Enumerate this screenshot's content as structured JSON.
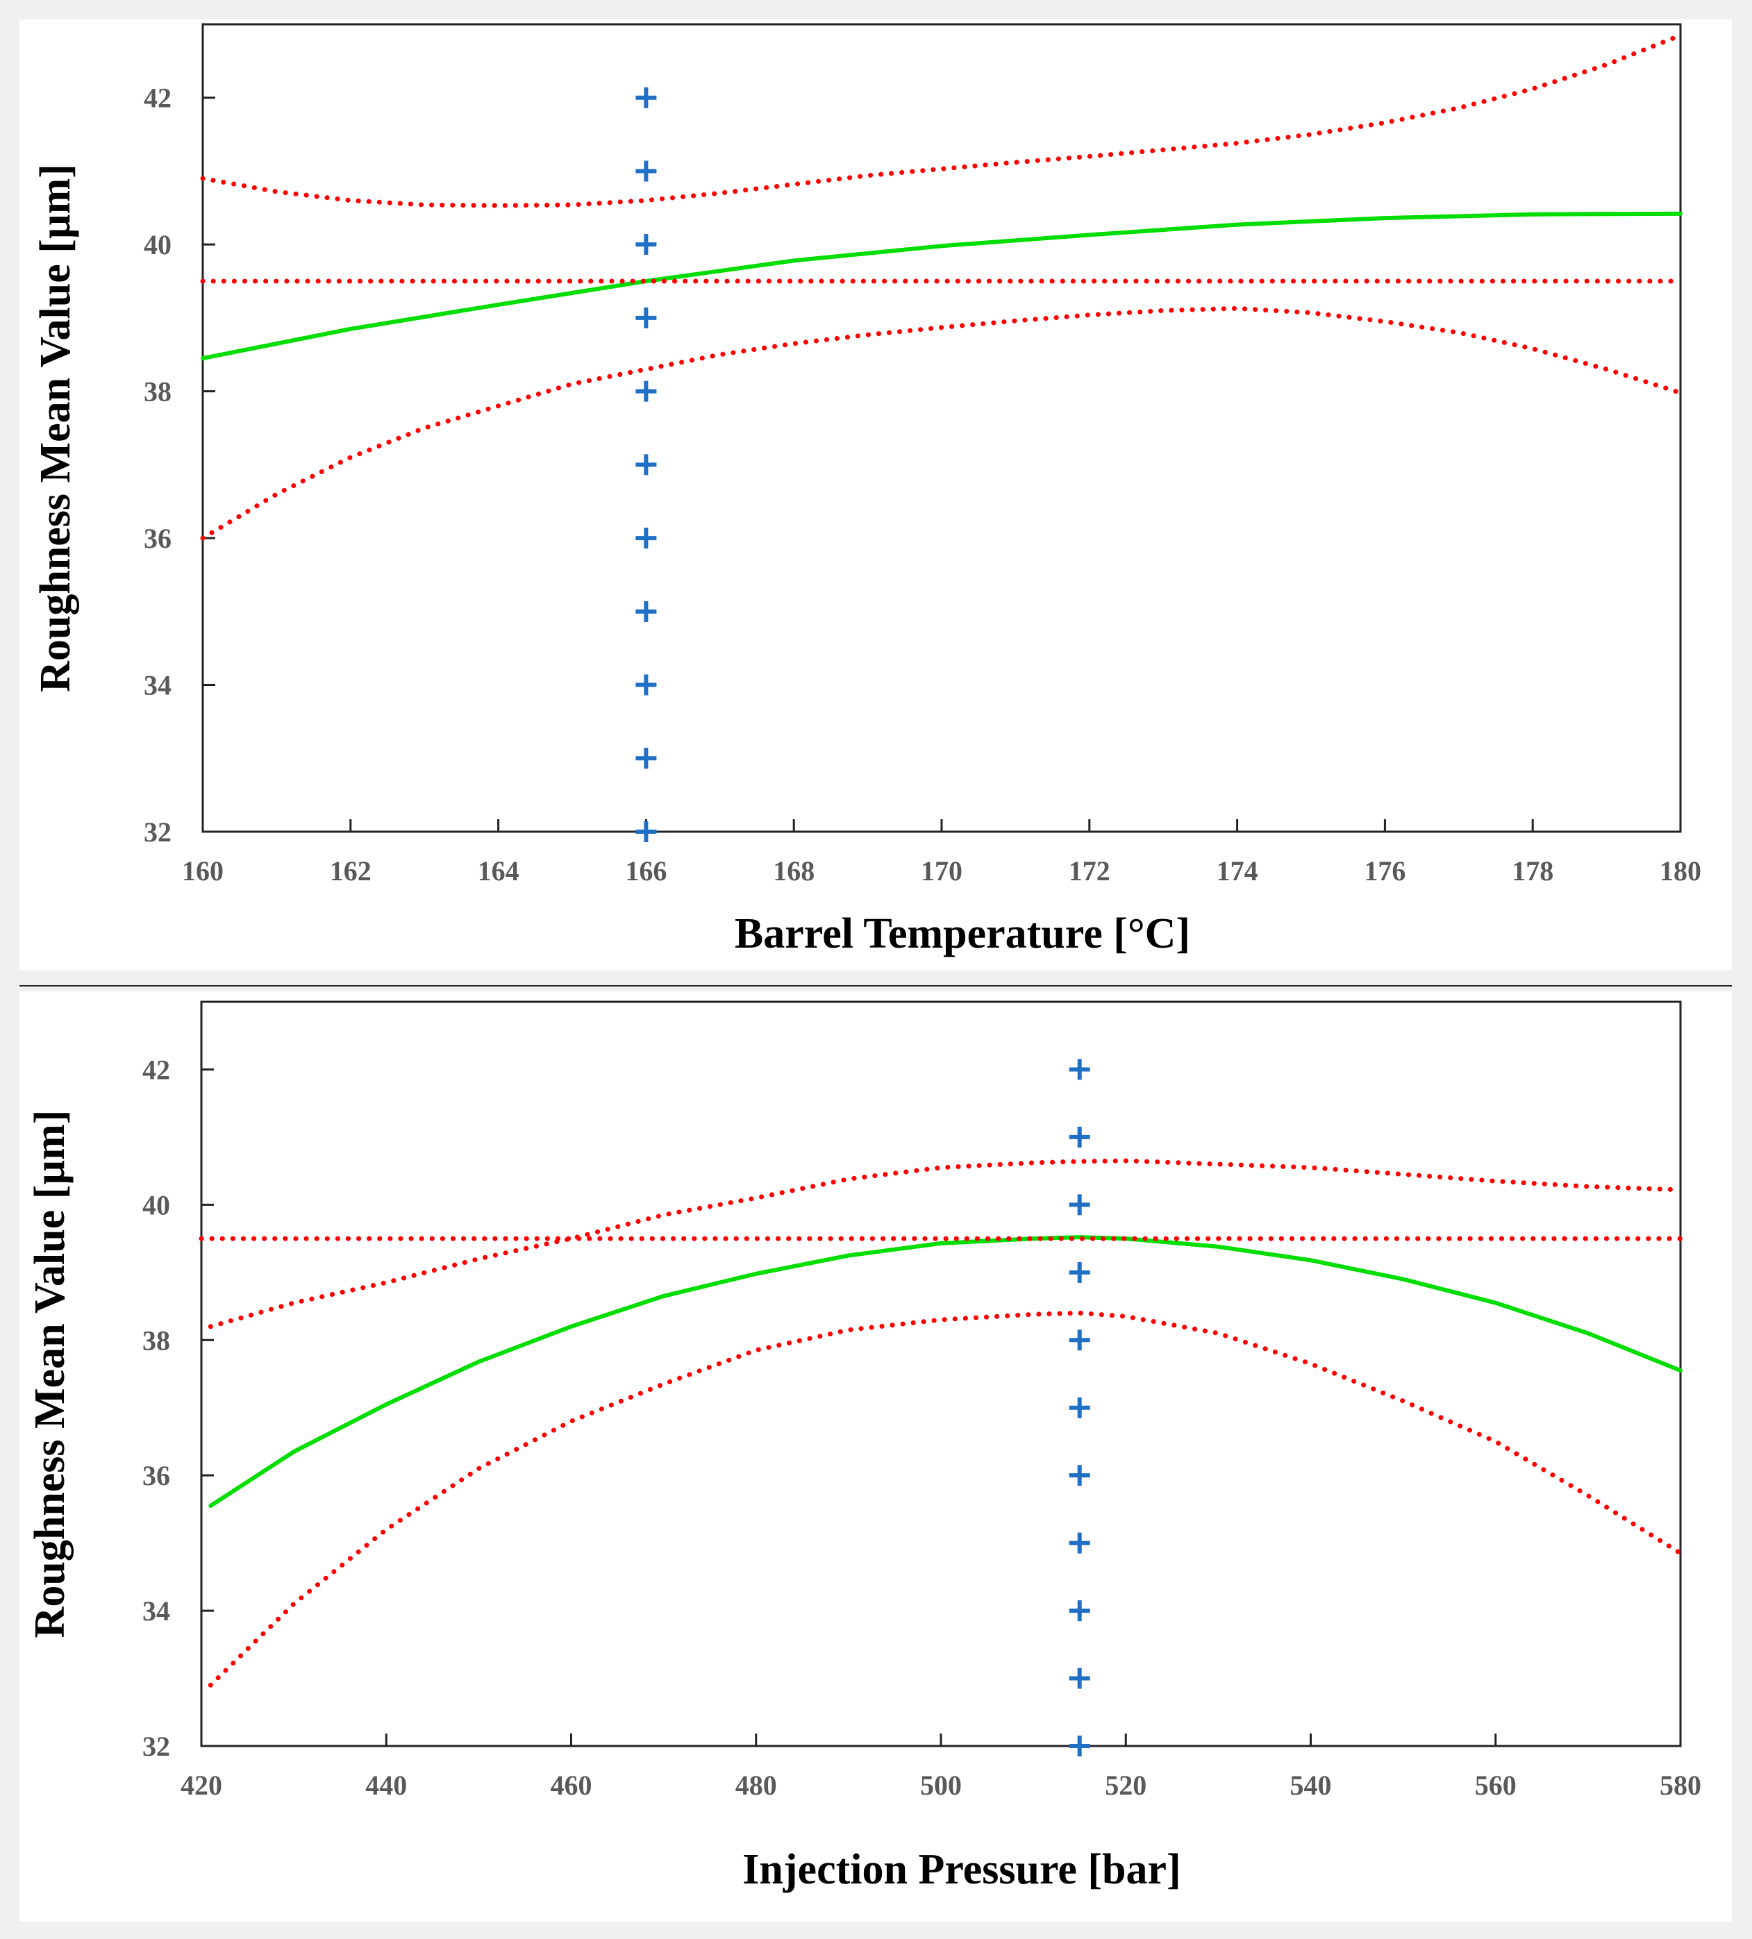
{
  "chart_data": [
    {
      "type": "line",
      "title": "",
      "xlabel": "Barrel Temperature [°C]",
      "ylabel": "Roughness Mean Value [µm]",
      "xlim": [
        160,
        180
      ],
      "ylim": [
        32,
        43
      ],
      "xticks": [
        160,
        162,
        164,
        166,
        168,
        170,
        172,
        174,
        176,
        178,
        180
      ],
      "yticks": [
        32,
        34,
        36,
        38,
        40,
        42
      ],
      "grid": false,
      "legend": "none",
      "series": [
        {
          "style": "solid",
          "color": "#00dd00",
          "x": [
            160,
            162,
            164,
            166,
            168,
            170,
            172,
            174,
            176,
            178,
            180
          ],
          "y": [
            38.45,
            38.85,
            39.18,
            39.5,
            39.78,
            39.98,
            40.13,
            40.27,
            40.36,
            40.41,
            40.42
          ]
        },
        {
          "style": "dotted",
          "color": "#ff0000",
          "x": [
            160,
            161,
            162,
            163,
            164,
            165,
            166,
            167,
            168,
            169,
            170,
            171,
            172,
            173,
            174,
            175,
            176,
            177,
            178,
            179,
            180
          ],
          "y": [
            40.9,
            40.72,
            40.6,
            40.54,
            40.53,
            40.54,
            40.6,
            40.7,
            40.82,
            40.94,
            41.03,
            41.12,
            41.2,
            41.29,
            41.38,
            41.5,
            41.66,
            41.86,
            42.12,
            42.45,
            42.85
          ]
        },
        {
          "style": "dotted",
          "color": "#ff0000",
          "x": [
            160,
            161,
            162,
            163,
            164,
            165,
            166,
            167,
            168,
            169,
            170,
            171,
            172,
            173,
            174,
            175,
            176,
            177,
            178,
            179,
            180
          ],
          "y": [
            36.0,
            36.6,
            37.1,
            37.5,
            37.8,
            38.1,
            38.3,
            38.5,
            38.65,
            38.77,
            38.87,
            38.96,
            39.04,
            39.1,
            39.13,
            39.07,
            38.95,
            38.8,
            38.58,
            38.3,
            37.98
          ]
        },
        {
          "style": "dotted",
          "color": "#ff0000",
          "x": [
            160,
            180
          ],
          "y": [
            39.5,
            39.5
          ]
        },
        {
          "style": "markers",
          "marker": "+",
          "color": "#1f6fc5",
          "x": [
            166,
            166,
            166,
            166,
            166,
            166,
            166,
            166,
            166,
            166,
            166
          ],
          "y": [
            42,
            41,
            40,
            39,
            38,
            37,
            36,
            35,
            34,
            33,
            32
          ]
        }
      ]
    },
    {
      "type": "line",
      "title": "",
      "xlabel": "Injection Pressure [bar]",
      "ylabel": "Roughness Mean Value [µm]",
      "xlim": [
        420,
        580
      ],
      "ylim": [
        32,
        43
      ],
      "xticks": [
        420,
        440,
        460,
        480,
        500,
        520,
        540,
        560,
        580
      ],
      "yticks": [
        32,
        34,
        36,
        38,
        40,
        42
      ],
      "grid": false,
      "legend": "none",
      "series": [
        {
          "style": "solid",
          "color": "#00dd00",
          "x": [
            421,
            430,
            440,
            450,
            460,
            470,
            480,
            490,
            500,
            510,
            515,
            520,
            530,
            540,
            550,
            560,
            570,
            580
          ],
          "y": [
            35.55,
            36.35,
            37.05,
            37.68,
            38.2,
            38.65,
            38.98,
            39.25,
            39.43,
            39.5,
            39.52,
            39.5,
            39.38,
            39.18,
            38.9,
            38.55,
            38.1,
            37.55
          ]
        },
        {
          "style": "dotted",
          "color": "#ff0000",
          "x": [
            421,
            430,
            440,
            450,
            460,
            470,
            480,
            490,
            500,
            510,
            515,
            520,
            530,
            540,
            550,
            560,
            570,
            580
          ],
          "y": [
            38.2,
            38.55,
            38.85,
            39.2,
            39.5,
            39.85,
            40.1,
            40.38,
            40.55,
            40.62,
            40.64,
            40.65,
            40.6,
            40.55,
            40.45,
            40.35,
            40.27,
            40.22
          ]
        },
        {
          "style": "dotted",
          "color": "#ff0000",
          "x": [
            421,
            430,
            440,
            450,
            460,
            470,
            480,
            490,
            500,
            510,
            515,
            520,
            530,
            540,
            550,
            560,
            570,
            580
          ],
          "y": [
            32.9,
            34.1,
            35.2,
            36.1,
            36.8,
            37.35,
            37.85,
            38.15,
            38.3,
            38.38,
            38.4,
            38.35,
            38.1,
            37.65,
            37.1,
            36.5,
            35.7,
            34.85
          ]
        },
        {
          "style": "dotted",
          "color": "#ff0000",
          "x": [
            420,
            580
          ],
          "y": [
            39.5,
            39.5
          ]
        },
        {
          "style": "markers",
          "marker": "+",
          "color": "#1f6fc5",
          "x": [
            515,
            515,
            515,
            515,
            515,
            515,
            515,
            515,
            515,
            515,
            515
          ],
          "y": [
            42,
            41,
            40,
            39,
            38,
            37,
            36,
            35,
            34,
            33,
            32
          ]
        }
      ]
    }
  ]
}
